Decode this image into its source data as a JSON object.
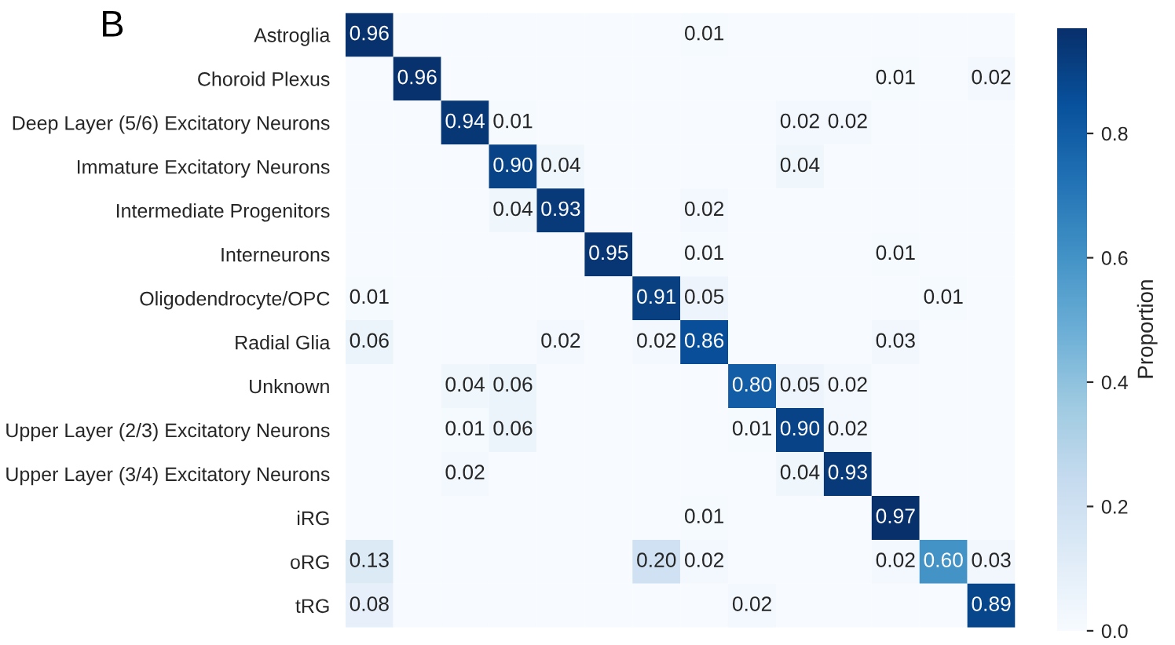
{
  "chart_data": {
    "type": "heatmap",
    "title": "B",
    "clabel": "Proportion",
    "categories": [
      null,
      null,
      null,
      null,
      null,
      null,
      null,
      null,
      null,
      null,
      null,
      null,
      null,
      null
    ],
    "y_categories": [
      "Astroglia",
      "Choroid Plexus",
      "Deep Layer (5/6) Excitatory Neurons",
      "Immature Excitatory Neurons",
      "Intermediate Progenitors",
      "Interneurons",
      "Oligodendrocyte/OPC",
      "Radial Glia",
      "Unknown",
      "Upper Layer (2/3) Excitatory Neurons",
      "Upper Layer (3/4) Excitatory Neurons",
      "iRG",
      "oRG",
      "tRG"
    ],
    "cells": [
      [
        0.96,
        0,
        0,
        0,
        0,
        0,
        0,
        0.01,
        0,
        0,
        0,
        0,
        0,
        0
      ],
      [
        0,
        0.96,
        0,
        0,
        0,
        0,
        0,
        0,
        0,
        0,
        0,
        0.01,
        0,
        0.02
      ],
      [
        0,
        0,
        0.94,
        0.01,
        0,
        0,
        0,
        0,
        0,
        0.02,
        0.02,
        0,
        0,
        0
      ],
      [
        0,
        0,
        0,
        0.9,
        0.04,
        0,
        0,
        0,
        0,
        0.04,
        0,
        0,
        0,
        0
      ],
      [
        0,
        0,
        0,
        0.04,
        0.93,
        0,
        0,
        0.02,
        0,
        0,
        0,
        0,
        0,
        0
      ],
      [
        0,
        0,
        0,
        0,
        0,
        0.95,
        0,
        0.01,
        0,
        0,
        0,
        0.01,
        0,
        0
      ],
      [
        0.01,
        0,
        0,
        0,
        0,
        0,
        0.91,
        0.05,
        0,
        0,
        0,
        0,
        0.01,
        0
      ],
      [
        0.06,
        0,
        0,
        0,
        0.02,
        0,
        0.02,
        0.86,
        0,
        0,
        0,
        0.03,
        0,
        0
      ],
      [
        0,
        0,
        0.04,
        0.06,
        0,
        0,
        0,
        0,
        0.8,
        0.05,
        0.02,
        0,
        0,
        0
      ],
      [
        0,
        0,
        0.01,
        0.06,
        0,
        0,
        0,
        0,
        0.01,
        0.9,
        0.02,
        0,
        0,
        0
      ],
      [
        0,
        0,
        0.02,
        0,
        0,
        0,
        0,
        0,
        0,
        0.04,
        0.93,
        0,
        0,
        0
      ],
      [
        0,
        0,
        0,
        0,
        0,
        0,
        0,
        0.01,
        0,
        0,
        0,
        0.97,
        0,
        0
      ],
      [
        0.13,
        0,
        0,
        0,
        0,
        0,
        0.2,
        0.02,
        0,
        0,
        0,
        0.02,
        0.6,
        0.03
      ],
      [
        0.08,
        0,
        0,
        0,
        0,
        0,
        0,
        0,
        0.02,
        0,
        0,
        0,
        0,
        0.89
      ]
    ],
    "cell_labels": [
      [
        "0.96",
        null,
        null,
        null,
        null,
        null,
        null,
        "0.01",
        null,
        null,
        null,
        null,
        null,
        null
      ],
      [
        null,
        "0.96",
        null,
        null,
        null,
        null,
        null,
        null,
        null,
        null,
        null,
        "0.01",
        null,
        "0.02"
      ],
      [
        null,
        null,
        "0.94",
        "0.01",
        null,
        null,
        null,
        null,
        null,
        "0.02",
        "0.02",
        null,
        null,
        null
      ],
      [
        null,
        null,
        null,
        "0.90",
        "0.04",
        null,
        null,
        null,
        null,
        "0.04",
        null,
        null,
        null,
        null
      ],
      [
        null,
        null,
        null,
        "0.04",
        "0.93",
        null,
        null,
        "0.02",
        null,
        null,
        null,
        null,
        null,
        null
      ],
      [
        null,
        null,
        null,
        null,
        null,
        "0.95",
        null,
        "0.01",
        null,
        null,
        null,
        "0.01",
        null,
        null
      ],
      [
        "0.01",
        null,
        null,
        null,
        null,
        null,
        "0.91",
        "0.05",
        null,
        null,
        null,
        null,
        "0.01",
        null
      ],
      [
        "0.06",
        null,
        null,
        null,
        "0.02",
        null,
        "0.02",
        "0.86",
        null,
        null,
        null,
        "0.03",
        null,
        null
      ],
      [
        null,
        null,
        "0.04",
        "0.06",
        null,
        null,
        null,
        null,
        "0.80",
        "0.05",
        "0.02",
        null,
        null,
        null
      ],
      [
        null,
        null,
        "0.01",
        "0.06",
        null,
        null,
        null,
        null,
        "0.01",
        "0.90",
        "0.02",
        null,
        null,
        null
      ],
      [
        null,
        null,
        "0.02",
        null,
        null,
        null,
        null,
        null,
        null,
        "0.04",
        "0.93",
        null,
        null,
        null
      ],
      [
        null,
        null,
        null,
        null,
        null,
        null,
        null,
        "0.01",
        null,
        null,
        null,
        "0.97",
        null,
        null
      ],
      [
        "0.13",
        null,
        null,
        null,
        null,
        null,
        "0.20",
        "0.02",
        null,
        null,
        null,
        "0.02",
        "0.60",
        "0.03"
      ],
      [
        "0.08",
        null,
        null,
        null,
        null,
        null,
        null,
        null,
        "0.02",
        null,
        null,
        null,
        null,
        "0.89"
      ]
    ],
    "clim": [
      0,
      0.97
    ],
    "cticks": [
      {
        "value": 0,
        "label": "0.0"
      },
      0.2,
      0.4,
      0.6,
      0.8
    ],
    "tick_labels": "y"
  }
}
